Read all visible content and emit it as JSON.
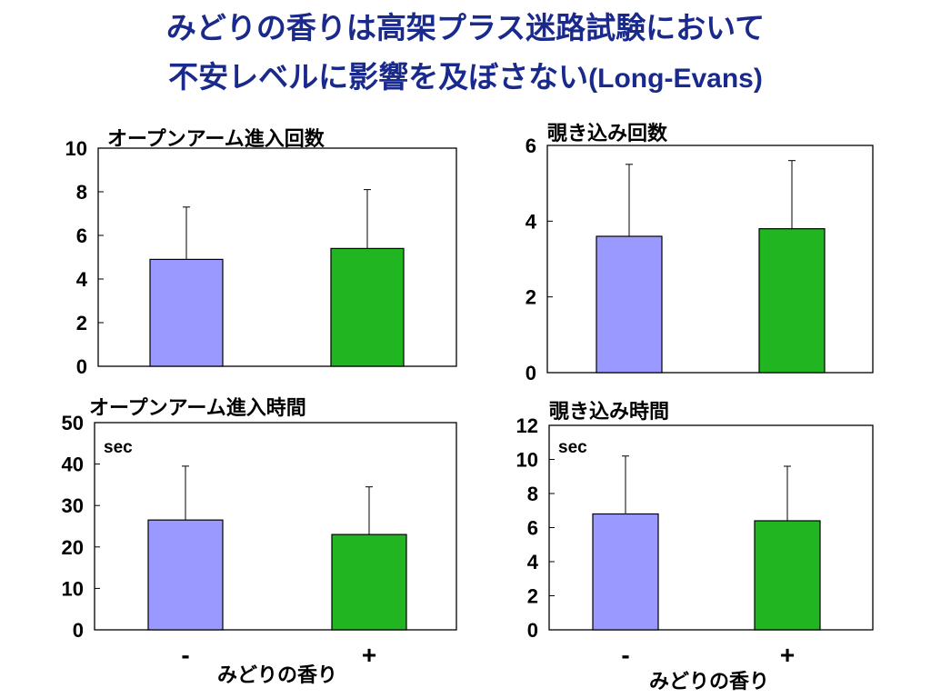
{
  "title": {
    "line1": "みどりの香りは高架プラス迷路試験において",
    "line2": "不安レベルに影響を及ぼさない",
    "line2_latin": "(Long-Evans)"
  },
  "colors": {
    "title": "#1a2a8c",
    "bar_minus": "#9999ff",
    "bar_plus": "#22b522",
    "axis": "#000000"
  },
  "chart_data": [
    {
      "type": "bar",
      "title": "オープンアーム進入回数",
      "categories": [
        "-",
        "+"
      ],
      "values": [
        4.9,
        5.4
      ],
      "errors": [
        2.4,
        2.7
      ],
      "ylim": [
        0,
        10
      ],
      "yticks": [
        "0",
        "2",
        "4",
        "6",
        "8",
        "10"
      ],
      "unit": "",
      "xlabel": "",
      "show_category_labels": false,
      "grid": false
    },
    {
      "type": "bar",
      "title": "覗き込み回数",
      "categories": [
        "-",
        "+"
      ],
      "values": [
        3.6,
        3.8
      ],
      "errors": [
        1.9,
        1.8
      ],
      "ylim": [
        0,
        6
      ],
      "yticks": [
        "0",
        "2",
        "4",
        "6"
      ],
      "unit": "",
      "xlabel": "",
      "show_category_labels": false,
      "grid": false
    },
    {
      "type": "bar",
      "title": "オープンアーム進入時間",
      "categories": [
        "-",
        "+"
      ],
      "values": [
        26.5,
        23.0
      ],
      "errors": [
        13.0,
        11.5
      ],
      "ylim": [
        0,
        50
      ],
      "yticks": [
        "0",
        "10",
        "20",
        "30",
        "40",
        "50"
      ],
      "unit": "sec",
      "xlabel": "みどりの香り",
      "show_category_labels": true,
      "grid": false
    },
    {
      "type": "bar",
      "title": "覗き込み時間",
      "categories": [
        "-",
        "+"
      ],
      "values": [
        6.8,
        6.4
      ],
      "errors": [
        3.4,
        3.2
      ],
      "ylim": [
        0,
        12
      ],
      "yticks": [
        "0",
        "2",
        "4",
        "6",
        "8",
        "10",
        "12"
      ],
      "unit": "sec",
      "xlabel": "みどりの香り",
      "show_category_labels": true,
      "grid": false
    }
  ]
}
